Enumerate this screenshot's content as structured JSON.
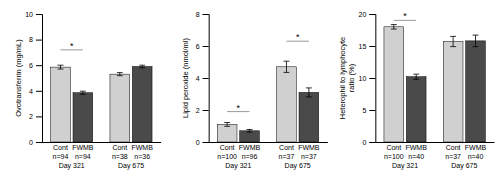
{
  "chart_data": [
    {
      "type": "bar",
      "ylabel": "Ovotransferrin (mg/mL)",
      "categories": [
        "Cont",
        "FWMB",
        "Cont",
        "FWMB"
      ],
      "sample_sizes": [
        "n=94",
        "n=94",
        "n=38",
        "n=36"
      ],
      "groups": [
        "Day 321",
        "Day 675"
      ],
      "values": [
        5.85,
        3.85,
        5.3,
        5.9
      ],
      "errors": [
        0.15,
        0.12,
        0.12,
        0.1
      ],
      "colors": [
        "#d0d0d0",
        "#4a4a4a",
        "#d0d0d0",
        "#4a4a4a"
      ],
      "ylim": [
        0,
        10
      ],
      "yticks": [
        0,
        2,
        4,
        6,
        8,
        10
      ],
      "significance": [
        {
          "from": 0,
          "to": 1,
          "y": 7.2,
          "label": "*"
        }
      ]
    },
    {
      "type": "bar",
      "ylabel": "Lipid peroxide (nmol/ml)",
      "categories": [
        "Cont",
        "FWMB",
        "Cont",
        "FWMB"
      ],
      "sample_sizes": [
        "n=100",
        "n=96",
        "n=37",
        "n=37"
      ],
      "groups": [
        "Day 321",
        "Day 675"
      ],
      "values": [
        1.1,
        0.7,
        4.7,
        3.1
      ],
      "errors": [
        0.12,
        0.08,
        0.35,
        0.28
      ],
      "colors": [
        "#d0d0d0",
        "#4a4a4a",
        "#d0d0d0",
        "#4a4a4a"
      ],
      "ylim": [
        0,
        8
      ],
      "yticks": [
        0,
        2,
        4,
        6,
        8
      ],
      "significance": [
        {
          "from": 0,
          "to": 1,
          "y": 1.9,
          "label": "*"
        },
        {
          "from": 2,
          "to": 3,
          "y": 6.3,
          "label": "*"
        }
      ]
    },
    {
      "type": "bar",
      "ylabel": "Heterophil to lymphocyte\nratio (%)",
      "categories": [
        "Cont",
        "FWMB",
        "Cont",
        "FWMB"
      ],
      "sample_sizes": [
        "n=100",
        "n=40",
        "n=37",
        "n=40"
      ],
      "groups": [
        "Day 321",
        "Day 675"
      ],
      "values": [
        18.0,
        10.2,
        15.7,
        15.8
      ],
      "errors": [
        0.35,
        0.4,
        0.8,
        0.9
      ],
      "colors": [
        "#d0d0d0",
        "#4a4a4a",
        "#d0d0d0",
        "#4a4a4a"
      ],
      "ylim": [
        0,
        20
      ],
      "yticks": [
        0,
        5,
        10,
        15,
        20
      ],
      "significance": [
        {
          "from": 0,
          "to": 1,
          "y": 19.0,
          "label": "*"
        }
      ]
    }
  ]
}
